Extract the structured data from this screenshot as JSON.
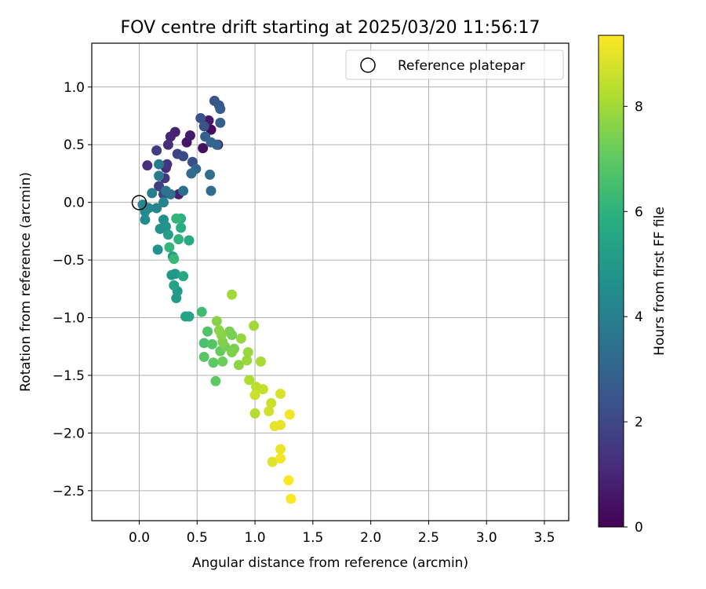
{
  "chart_data": {
    "type": "scatter",
    "title": "FOV centre drift starting at 2025/03/20 11:56:17",
    "xlabel": "Angular distance from reference (arcmin)",
    "ylabel": "Rotation from reference (arcmin)",
    "xlim": [
      -0.41,
      3.71
    ],
    "ylim": [
      -2.76,
      1.38
    ],
    "xticks": [
      "0.0",
      "0.5",
      "1.0",
      "1.5",
      "2.0",
      "2.5",
      "3.0",
      "3.5"
    ],
    "xtick_values": [
      0.0,
      0.5,
      1.0,
      1.5,
      2.0,
      2.5,
      3.0,
      3.5
    ],
    "yticks": [
      "1.0",
      "0.5",
      "0.0",
      "−0.5",
      "−1.0",
      "−1.5",
      "−2.0",
      "−2.5"
    ],
    "ytick_values": [
      1.0,
      0.5,
      0.0,
      -0.5,
      -1.0,
      -1.5,
      -2.0,
      -2.5
    ],
    "grid": true,
    "legend_position": "top-right",
    "reference": {
      "name": "Reference platepar",
      "x": 0.0,
      "y": 0.0,
      "marker": "hollow-circle"
    },
    "colorbar": {
      "label": "Hours from first FF file",
      "range": [
        0,
        9.35
      ],
      "ticks": [
        "0",
        "2",
        "4",
        "6",
        "8"
      ],
      "tick_values": [
        0,
        2,
        4,
        6,
        8
      ],
      "colormap": "viridis"
    },
    "points": [
      {
        "x": 0.68,
        "y": 0.5,
        "h": 0.2
      },
      {
        "x": 0.62,
        "y": 0.63,
        "h": 0.3
      },
      {
        "x": 0.55,
        "y": 0.47,
        "h": 0.4
      },
      {
        "x": 0.41,
        "y": 0.52,
        "h": 0.5
      },
      {
        "x": 0.6,
        "y": 0.71,
        "h": 0.6
      },
      {
        "x": 0.44,
        "y": 0.58,
        "h": 0.7
      },
      {
        "x": 0.34,
        "y": 0.07,
        "h": 0.8
      },
      {
        "x": 0.31,
        "y": 0.61,
        "h": 0.9
      },
      {
        "x": 0.27,
        "y": 0.57,
        "h": 1.0
      },
      {
        "x": 0.23,
        "y": 0.3,
        "h": 1.1
      },
      {
        "x": 0.25,
        "y": 0.5,
        "h": 1.2
      },
      {
        "x": 0.07,
        "y": 0.32,
        "h": 1.3
      },
      {
        "x": 0.24,
        "y": 0.33,
        "h": 1.4
      },
      {
        "x": 0.22,
        "y": 0.21,
        "h": 1.5
      },
      {
        "x": 0.15,
        "y": 0.45,
        "h": 1.6
      },
      {
        "x": 0.17,
        "y": 0.14,
        "h": 1.7
      },
      {
        "x": 0.33,
        "y": 0.42,
        "h": 1.9
      },
      {
        "x": 0.21,
        "y": 0.07,
        "h": 2.0
      },
      {
        "x": 0.38,
        "y": 0.4,
        "h": 2.1
      },
      {
        "x": 0.46,
        "y": 0.35,
        "h": 2.2
      },
      {
        "x": 0.53,
        "y": 0.73,
        "h": 2.3
      },
      {
        "x": 0.56,
        "y": 0.66,
        "h": 2.4
      },
      {
        "x": 0.65,
        "y": 0.88,
        "h": 2.5
      },
      {
        "x": 0.69,
        "y": 0.84,
        "h": 2.6
      },
      {
        "x": 0.7,
        "y": 0.81,
        "h": 2.7
      },
      {
        "x": 0.7,
        "y": 0.69,
        "h": 2.8
      },
      {
        "x": 0.57,
        "y": 0.57,
        "h": 2.9
      },
      {
        "x": 0.62,
        "y": 0.52,
        "h": 3.0
      },
      {
        "x": 0.67,
        "y": 0.5,
        "h": 3.0
      },
      {
        "x": 0.49,
        "y": 0.29,
        "h": 3.1
      },
      {
        "x": 0.45,
        "y": 0.25,
        "h": 3.2
      },
      {
        "x": 0.61,
        "y": 0.24,
        "h": 3.3
      },
      {
        "x": 0.62,
        "y": 0.1,
        "h": 3.3
      },
      {
        "x": 0.38,
        "y": 0.1,
        "h": 3.4
      },
      {
        "x": 0.27,
        "y": 0.07,
        "h": 3.5
      },
      {
        "x": 0.23,
        "y": 0.1,
        "h": 3.6
      },
      {
        "x": 0.17,
        "y": 0.23,
        "h": 3.8
      },
      {
        "x": 0.17,
        "y": 0.33,
        "h": 3.9
      },
      {
        "x": 0.11,
        "y": 0.08,
        "h": 4.0
      },
      {
        "x": 0.21,
        "y": 0.0,
        "h": 4.2
      },
      {
        "x": 0.15,
        "y": -0.05,
        "h": 4.2
      },
      {
        "x": 0.08,
        "y": -0.05,
        "h": 4.3
      },
      {
        "x": 0.03,
        "y": -0.02,
        "h": 4.3
      },
      {
        "x": 0.05,
        "y": -0.08,
        "h": 4.4
      },
      {
        "x": 0.05,
        "y": -0.15,
        "h": 4.5
      },
      {
        "x": 0.21,
        "y": -0.15,
        "h": 4.6
      },
      {
        "x": 0.18,
        "y": -0.23,
        "h": 4.7
      },
      {
        "x": 0.16,
        "y": -0.41,
        "h": 4.7
      },
      {
        "x": 0.23,
        "y": -0.21,
        "h": 4.8
      },
      {
        "x": 0.28,
        "y": -0.63,
        "h": 4.9
      },
      {
        "x": 0.31,
        "y": -0.62,
        "h": 4.9
      },
      {
        "x": 0.32,
        "y": -0.83,
        "h": 5.0
      },
      {
        "x": 0.33,
        "y": -0.77,
        "h": 5.0
      },
      {
        "x": 0.29,
        "y": -0.47,
        "h": 5.1
      },
      {
        "x": 0.25,
        "y": -0.28,
        "h": 5.2
      },
      {
        "x": 0.3,
        "y": -0.72,
        "h": 5.3
      },
      {
        "x": 0.4,
        "y": -0.99,
        "h": 5.4
      },
      {
        "x": 0.43,
        "y": -0.99,
        "h": 5.5
      },
      {
        "x": 0.38,
        "y": -0.64,
        "h": 5.6
      },
      {
        "x": 0.43,
        "y": -0.33,
        "h": 5.7
      },
      {
        "x": 0.36,
        "y": -0.22,
        "h": 5.8
      },
      {
        "x": 0.36,
        "y": -0.14,
        "h": 5.9
      },
      {
        "x": 0.34,
        "y": -0.32,
        "h": 6.0
      },
      {
        "x": 0.32,
        "y": -0.14,
        "h": 6.1
      },
      {
        "x": 0.26,
        "y": -0.39,
        "h": 6.1
      },
      {
        "x": 0.3,
        "y": -0.49,
        "h": 6.2
      },
      {
        "x": 0.54,
        "y": -0.95,
        "h": 6.4
      },
      {
        "x": 0.56,
        "y": -1.22,
        "h": 6.6
      },
      {
        "x": 0.59,
        "y": -1.12,
        "h": 6.7
      },
      {
        "x": 0.63,
        "y": -1.23,
        "h": 6.8
      },
      {
        "x": 0.56,
        "y": -1.34,
        "h": 6.9
      },
      {
        "x": 0.64,
        "y": -1.39,
        "h": 7.0
      },
      {
        "x": 0.66,
        "y": -1.55,
        "h": 7.0
      },
      {
        "x": 0.7,
        "y": -1.29,
        "h": 7.1
      },
      {
        "x": 0.72,
        "y": -1.38,
        "h": 7.2
      },
      {
        "x": 0.74,
        "y": -1.25,
        "h": 7.3
      },
      {
        "x": 0.8,
        "y": -1.15,
        "h": 7.3
      },
      {
        "x": 0.78,
        "y": -1.12,
        "h": 7.4
      },
      {
        "x": 0.82,
        "y": -1.27,
        "h": 7.4
      },
      {
        "x": 0.8,
        "y": -1.3,
        "h": 7.5
      },
      {
        "x": 0.72,
        "y": -1.21,
        "h": 7.5
      },
      {
        "x": 0.71,
        "y": -1.15,
        "h": 7.6
      },
      {
        "x": 0.67,
        "y": -1.03,
        "h": 7.6
      },
      {
        "x": 0.69,
        "y": -1.11,
        "h": 7.7
      },
      {
        "x": 0.86,
        "y": -1.41,
        "h": 7.7
      },
      {
        "x": 0.88,
        "y": -1.18,
        "h": 7.8
      },
      {
        "x": 0.93,
        "y": -1.37,
        "h": 7.9
      },
      {
        "x": 0.94,
        "y": -1.3,
        "h": 7.9
      },
      {
        "x": 0.8,
        "y": -0.8,
        "h": 8.0
      },
      {
        "x": 0.99,
        "y": -1.07,
        "h": 8.0
      },
      {
        "x": 1.05,
        "y": -1.38,
        "h": 8.1
      },
      {
        "x": 0.95,
        "y": -1.54,
        "h": 8.2
      },
      {
        "x": 1.0,
        "y": -1.83,
        "h": 8.3
      },
      {
        "x": 1.01,
        "y": -1.6,
        "h": 8.4
      },
      {
        "x": 1.07,
        "y": -1.62,
        "h": 8.5
      },
      {
        "x": 1.0,
        "y": -1.67,
        "h": 8.6
      },
      {
        "x": 1.14,
        "y": -1.74,
        "h": 8.6
      },
      {
        "x": 1.12,
        "y": -1.81,
        "h": 8.7
      },
      {
        "x": 1.22,
        "y": -1.66,
        "h": 8.8
      },
      {
        "x": 1.15,
        "y": -2.25,
        "h": 8.9
      },
      {
        "x": 1.17,
        "y": -1.94,
        "h": 9.0
      },
      {
        "x": 1.22,
        "y": -1.93,
        "h": 9.0
      },
      {
        "x": 1.22,
        "y": -2.14,
        "h": 9.1
      },
      {
        "x": 1.22,
        "y": -2.22,
        "h": 9.2
      },
      {
        "x": 1.3,
        "y": -1.84,
        "h": 9.2
      },
      {
        "x": 1.29,
        "y": -2.41,
        "h": 9.3
      },
      {
        "x": 1.31,
        "y": -2.57,
        "h": 9.3
      }
    ]
  }
}
